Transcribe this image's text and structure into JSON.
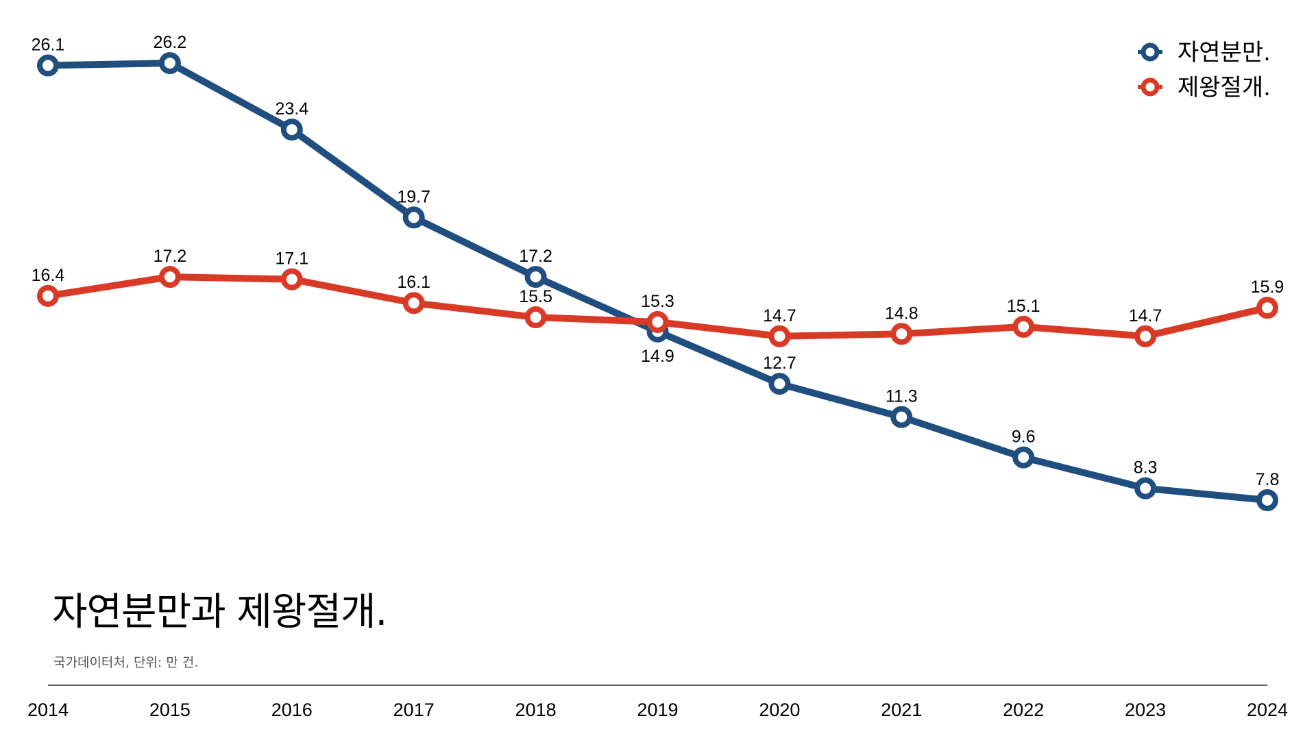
{
  "chart_data": {
    "type": "line",
    "title": "자연분만과 제왕절개.",
    "subtitle": "국가데이터처, 단위: 만 건.",
    "xlabel": "",
    "ylabel": "",
    "categories": [
      "2014",
      "2015",
      "2016",
      "2017",
      "2018",
      "2019",
      "2020",
      "2021",
      "2022",
      "2023",
      "2024"
    ],
    "series": [
      {
        "name": "자연분만.",
        "color": "#1f4e7f",
        "values": [
          26.1,
          26.2,
          23.4,
          19.7,
          17.2,
          14.9,
          12.7,
          11.3,
          9.6,
          8.3,
          7.8
        ]
      },
      {
        "name": "제왕절개.",
        "color": "#d93a26",
        "values": [
          16.4,
          17.2,
          17.1,
          16.1,
          15.5,
          15.3,
          14.7,
          14.8,
          15.1,
          14.7,
          15.9
        ]
      }
    ],
    "grid": false,
    "legend": "top-right",
    "data_labels": true
  }
}
